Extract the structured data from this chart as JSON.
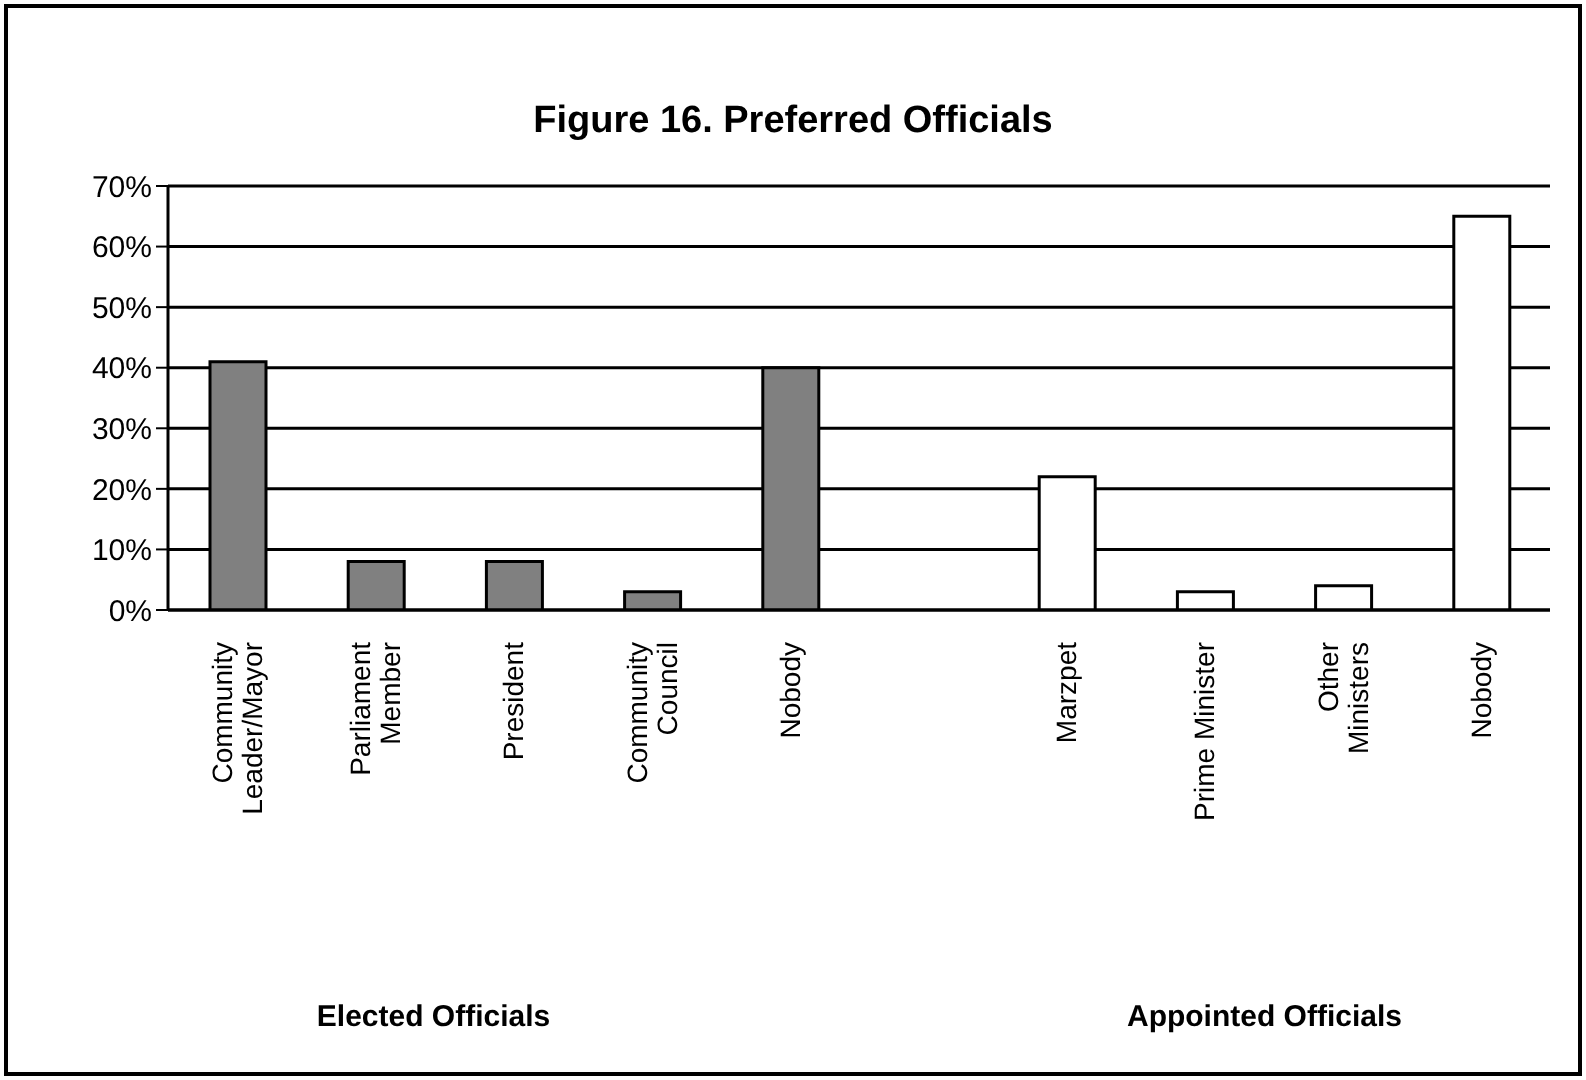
{
  "chart_data": {
    "type": "bar",
    "title": "Figure 16. Preferred Officials",
    "categories": [
      "Community Leader/Mayor",
      "Parliament Member",
      "President",
      "Community Council",
      "Nobody",
      null,
      "Marzpet",
      "Prime Minister",
      "Other Ministers",
      "Nobody"
    ],
    "values": [
      41,
      8,
      8,
      3,
      40,
      null,
      22,
      3,
      4,
      65
    ],
    "colors": [
      "#808080",
      "#808080",
      "#808080",
      "#808080",
      "#808080",
      "#808080",
      "#ffffff",
      "#ffffff",
      "#ffffff",
      "#ffffff"
    ],
    "ylim": [
      0,
      70
    ],
    "yticks": [
      {
        "value": 0,
        "label": "0%"
      },
      {
        "value": 10,
        "label": "10%"
      },
      {
        "value": 20,
        "label": "20%"
      },
      {
        "value": 30,
        "label": "30%"
      },
      {
        "value": 40,
        "label": "40%"
      },
      {
        "value": 50,
        "label": "50%"
      },
      {
        "value": 60,
        "label": "60%"
      },
      {
        "value": 70,
        "label": "70%"
      }
    ],
    "grid": "y",
    "legend": false,
    "annotations": [
      "Elected Officials",
      "Appointed Officials"
    ]
  }
}
